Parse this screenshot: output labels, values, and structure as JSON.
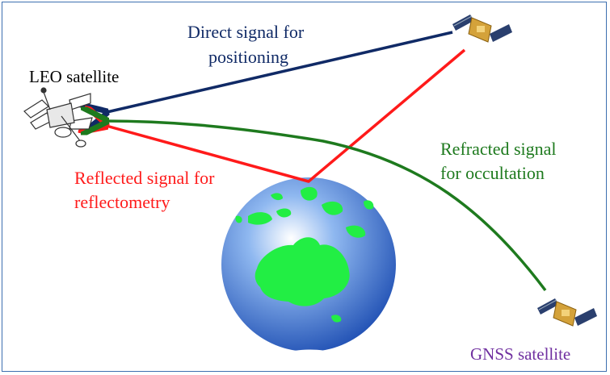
{
  "diagram": {
    "leo_label": "LEO satellite",
    "gnss_label": "GNSS satellite",
    "direct_label_line1": "Direct signal for",
    "direct_label_line2": "positioning",
    "reflected_label_line1": "Reflected signal for",
    "reflected_label_line2": "reflectometry",
    "refracted_label_line1": "Refracted signal",
    "refracted_label_line2": "for occultation"
  },
  "colors": {
    "direct": "#102a66",
    "reflected": "#ff1a1a",
    "refracted": "#1e7a1e",
    "gnss_text": "#7030a0",
    "body_text": "#000000",
    "frame": "#3d6fb0"
  },
  "icons": {
    "leo": "leo-satellite-icon",
    "gnss_top": "gnss-satellite-icon",
    "gnss_bottom": "gnss-satellite-icon",
    "earth": "earth-globe-icon"
  }
}
